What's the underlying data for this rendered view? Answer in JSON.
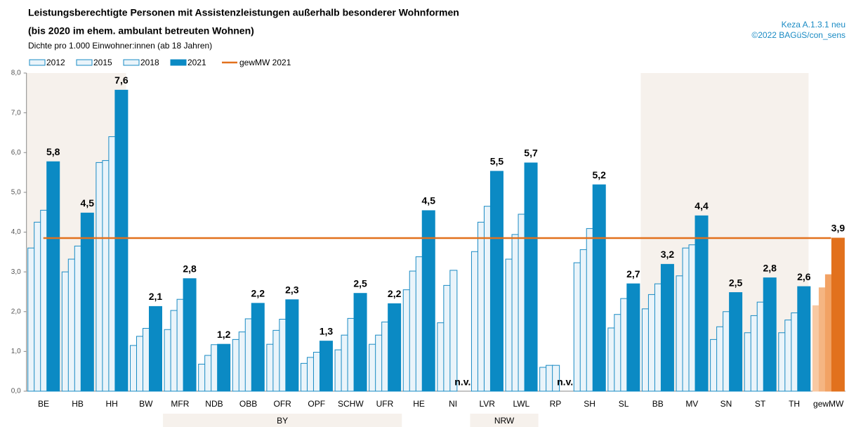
{
  "chart_data": {
    "type": "bar",
    "title": "Leistungsberechtigte Personen mit Assistenzleistungen außerhalb besonderer Wohnformen",
    "title_line2": "(bis 2020 im ehem. ambulant betreuten Wohnen)",
    "subtitle": "Dichte pro 1.000 Einwohner:innen (ab 18 Jahren)",
    "source": "Keza A.1.3.1 neu",
    "copyright": "©2022 BAGüS/con_sens",
    "categories": [
      "BE",
      "HB",
      "HH",
      "BW",
      "MFR",
      "NDB",
      "OBB",
      "OFR",
      "OPF",
      "SCHW",
      "UFR",
      "HE",
      "NI",
      "LVR",
      "LWL",
      "RP",
      "SH",
      "SL",
      "BB",
      "MV",
      "SN",
      "ST",
      "TH",
      "gewMW"
    ],
    "groups": [
      {
        "label": "BY",
        "from": "MFR",
        "to": "UFR"
      },
      {
        "label": "NRW",
        "from": "LVR",
        "to": "LWL"
      }
    ],
    "series": [
      {
        "name": "2012",
        "color": "#eaf4fa",
        "stroke": "#1a8bc4",
        "highlight_color": "#f8c9a3",
        "values": [
          3.6,
          3.0,
          5.75,
          1.15,
          1.55,
          0.68,
          1.3,
          1.18,
          0.7,
          1.04,
          1.18,
          2.55,
          1.72,
          3.51,
          3.32,
          0.6,
          3.23,
          1.59,
          2.07,
          2.9,
          1.3,
          1.47,
          1.47,
          2.15
        ]
      },
      {
        "name": "2015",
        "color": "#eaf4fa",
        "stroke": "#1a8bc4",
        "highlight_color": "#f5b582",
        "values": [
          4.25,
          3.32,
          5.8,
          1.38,
          2.03,
          0.9,
          1.49,
          1.53,
          0.85,
          1.41,
          1.41,
          3.02,
          2.66,
          4.25,
          3.94,
          0.65,
          3.56,
          1.93,
          2.43,
          3.6,
          1.62,
          1.9,
          1.79,
          2.6
        ]
      },
      {
        "name": "2018",
        "color": "#eaf4fa",
        "stroke": "#1a8bc4",
        "highlight_color": "#f2a264",
        "values": [
          4.55,
          3.65,
          6.4,
          1.58,
          2.31,
          1.17,
          1.82,
          1.81,
          0.98,
          1.83,
          1.74,
          3.38,
          3.04,
          4.65,
          4.45,
          0.65,
          4.09,
          2.33,
          2.7,
          3.68,
          2.0,
          2.24,
          1.97,
          2.93
        ]
      },
      {
        "name": "2021",
        "color": "#0b8ac4",
        "stroke": "#0b8ac4",
        "highlight_color": "#e2711d",
        "values": [
          5.77,
          4.48,
          7.57,
          2.13,
          2.83,
          1.18,
          2.21,
          2.3,
          1.26,
          2.46,
          2.2,
          4.54,
          null,
          5.53,
          5.74,
          null,
          5.19,
          2.7,
          3.19,
          4.41,
          2.48,
          2.85,
          2.63,
          3.85
        ],
        "value_labels": [
          "5,8",
          "4,5",
          "7,6",
          "2,1",
          "2,8",
          "1,2",
          "2,2",
          "2,3",
          "1,3",
          "2,5",
          "2,2",
          "4,5",
          "n.v.",
          "5,5",
          "5,7",
          "n.v.",
          "5,2",
          "2,7",
          "3,2",
          "4,4",
          "2,5",
          "2,8",
          "2,6",
          "3,9"
        ]
      }
    ],
    "reference_line": {
      "name": "gewMW 2021",
      "value": 3.85,
      "color": "#e2711d"
    },
    "ylim": [
      0,
      8
    ],
    "yticks": [
      {
        "value": 0,
        "label": "0,0"
      },
      {
        "value": 1,
        "label": "1,0"
      },
      {
        "value": 2,
        "label": "2,0"
      },
      {
        "value": 3,
        "label": "3,0"
      },
      {
        "value": 4,
        "label": "4,0"
      },
      {
        "value": 5,
        "label": "5,0"
      },
      {
        "value": 6,
        "label": "6,0"
      },
      {
        "value": 7,
        "label": "7,0"
      },
      {
        "value": 8,
        "label": "8,0"
      }
    ]
  }
}
